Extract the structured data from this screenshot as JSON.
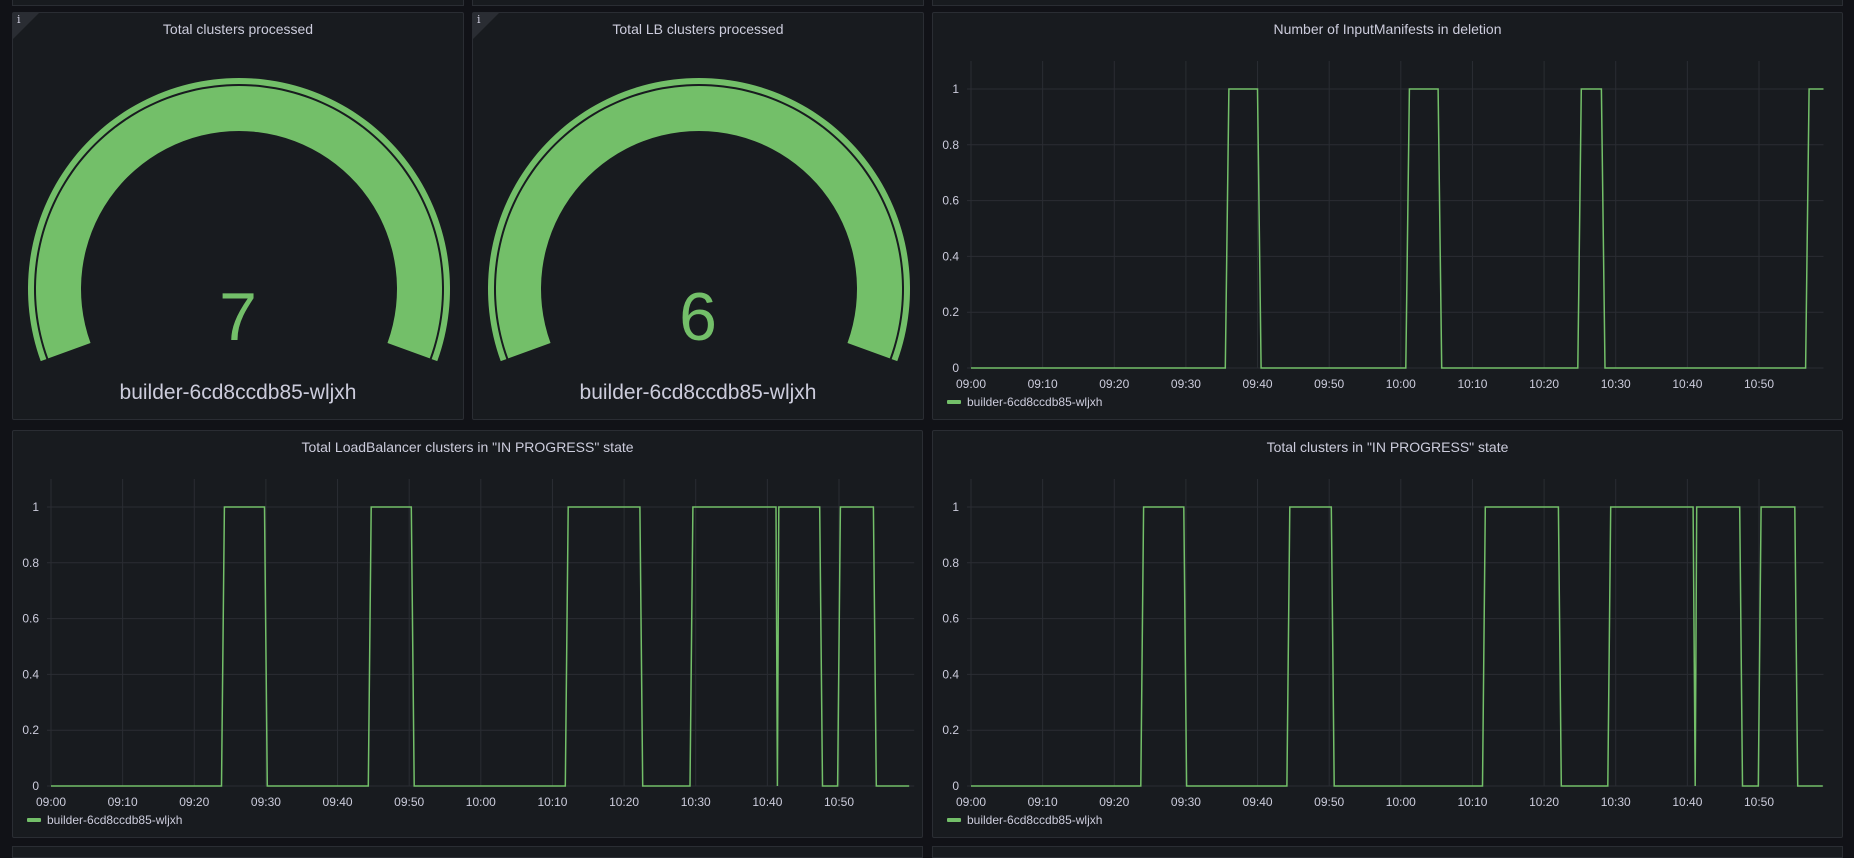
{
  "colors": {
    "series": "#73bf69",
    "grid": "#2a2d33",
    "text": "#ccccdc"
  },
  "gauges": [
    {
      "title": "Total clusters processed",
      "value": "7",
      "name": "builder-6cd8ccdb85-wljxh",
      "info_icon": "i"
    },
    {
      "title": "Total LB clusters processed",
      "value": "6",
      "name": "builder-6cd8ccdb85-wljxh",
      "info_icon": "i"
    }
  ],
  "chart_data": [
    {
      "type": "line",
      "title": "Number of InputManifests in deletion",
      "x_unit": "minutes since 09:00",
      "xlim": [
        0,
        119
      ],
      "ylim": [
        0,
        1.1
      ],
      "yticks": [
        "0",
        "0.2",
        "0.4",
        "0.6",
        "0.8",
        "1"
      ],
      "xticks": [
        "09:00",
        "09:10",
        "09:20",
        "09:30",
        "09:40",
        "09:50",
        "10:00",
        "10:10",
        "10:20",
        "10:30",
        "10:40",
        "10:50"
      ],
      "legend": "builder-6cd8ccdb85-wljxh",
      "series": [
        {
          "name": "builder-6cd8ccdb85-wljxh",
          "points": [
            [
              0,
              0
            ],
            [
              35.5,
              0
            ],
            [
              36,
              1
            ],
            [
              40,
              1
            ],
            [
              40.5,
              0
            ],
            [
              60.7,
              0
            ],
            [
              61.2,
              1
            ],
            [
              65.2,
              1
            ],
            [
              65.7,
              0
            ],
            [
              84.7,
              0
            ],
            [
              85.2,
              1
            ],
            [
              88,
              1
            ],
            [
              88.5,
              0
            ],
            [
              116.5,
              0
            ],
            [
              117,
              1
            ],
            [
              119,
              1
            ]
          ]
        }
      ]
    },
    {
      "type": "line",
      "title": "Total LoadBalancer clusters in \"IN PROGRESS\" state",
      "x_unit": "minutes since 09:00",
      "xlim": [
        0,
        120.5
      ],
      "ylim": [
        0,
        1.1
      ],
      "yticks": [
        "0",
        "0.2",
        "0.4",
        "0.6",
        "0.8",
        "1"
      ],
      "xticks": [
        "09:00",
        "09:10",
        "09:20",
        "09:30",
        "09:40",
        "09:50",
        "10:00",
        "10:10",
        "10:20",
        "10:30",
        "10:40",
        "10:50"
      ],
      "legend": "builder-6cd8ccdb85-wljxh",
      "series": [
        {
          "name": "builder-6cd8ccdb85-wljxh",
          "points": [
            [
              0,
              0
            ],
            [
              23.8,
              0
            ],
            [
              24.2,
              1
            ],
            [
              29.8,
              1
            ],
            [
              30.2,
              0
            ],
            [
              44.3,
              0
            ],
            [
              44.7,
              1
            ],
            [
              50.3,
              1
            ],
            [
              50.7,
              0
            ],
            [
              71.8,
              0
            ],
            [
              72.2,
              1
            ],
            [
              82.2,
              1
            ],
            [
              82.6,
              0
            ],
            [
              89.2,
              0
            ],
            [
              89.6,
              1
            ],
            [
              101.2,
              1
            ],
            [
              101.4,
              0
            ],
            [
              101.6,
              1
            ],
            [
              107.3,
              1
            ],
            [
              107.7,
              0
            ],
            [
              109.8,
              0
            ],
            [
              110.2,
              1
            ],
            [
              114.8,
              1
            ],
            [
              115.2,
              0
            ],
            [
              119.8,
              0
            ]
          ]
        }
      ]
    },
    {
      "type": "line",
      "title": "Total clusters in \"IN PROGRESS\" state",
      "x_unit": "minutes since 09:00",
      "xlim": [
        0,
        119
      ],
      "ylim": [
        0,
        1.1
      ],
      "yticks": [
        "0",
        "0.2",
        "0.4",
        "0.6",
        "0.8",
        "1"
      ],
      "xticks": [
        "09:00",
        "09:10",
        "09:20",
        "09:30",
        "09:40",
        "09:50",
        "10:00",
        "10:10",
        "10:20",
        "10:30",
        "10:40",
        "10:50"
      ],
      "legend": "builder-6cd8ccdb85-wljxh",
      "series": [
        {
          "name": "builder-6cd8ccdb85-wljxh",
          "points": [
            [
              0,
              0
            ],
            [
              23.7,
              0
            ],
            [
              24.1,
              1
            ],
            [
              29.7,
              1
            ],
            [
              30.1,
              0
            ],
            [
              44.1,
              0
            ],
            [
              44.5,
              1
            ],
            [
              50.3,
              1
            ],
            [
              50.7,
              0
            ],
            [
              71.4,
              0
            ],
            [
              71.8,
              1
            ],
            [
              82,
              1
            ],
            [
              82.4,
              0
            ],
            [
              88.9,
              0
            ],
            [
              89.3,
              1
            ],
            [
              100.8,
              1
            ],
            [
              101.1,
              0
            ],
            [
              101.3,
              1
            ],
            [
              107.3,
              1
            ],
            [
              107.7,
              0
            ],
            [
              109.9,
              0
            ],
            [
              110.3,
              1
            ],
            [
              115,
              1
            ],
            [
              115.4,
              0
            ],
            [
              118.9,
              0
            ]
          ]
        }
      ]
    }
  ]
}
